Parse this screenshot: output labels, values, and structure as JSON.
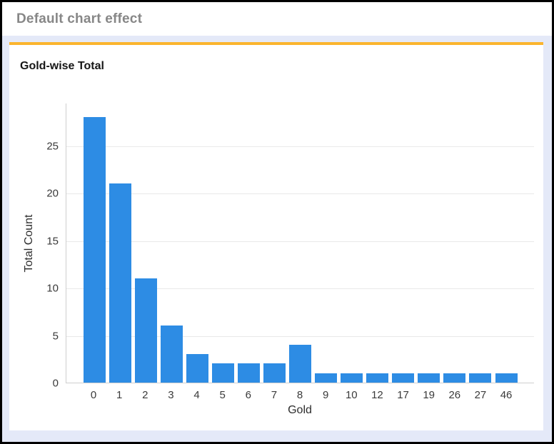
{
  "window": {
    "title": "Default chart effect"
  },
  "colors": {
    "bar": "#2d8ce4",
    "accent_line": "#fbb52e",
    "page_background": "#e4e9f8",
    "card_background": "#ffffff",
    "header_text": "#878787",
    "grid_line": "#e9e9e9",
    "axis_line": "#cfcfcf",
    "frame_border": "#000000"
  },
  "chart_data": {
    "type": "bar",
    "title": "Gold-wise Total",
    "xlabel": "Gold",
    "ylabel": "Total Count",
    "categories": [
      "0",
      "1",
      "2",
      "3",
      "4",
      "5",
      "6",
      "7",
      "8",
      "9",
      "10",
      "12",
      "17",
      "19",
      "26",
      "27",
      "46"
    ],
    "values": [
      28,
      21,
      11,
      6,
      3,
      2,
      2,
      2,
      4,
      1,
      1,
      1,
      1,
      1,
      1,
      1,
      1
    ],
    "yticks": [
      0,
      5,
      10,
      15,
      20,
      25
    ],
    "ylim": [
      0,
      29.5
    ],
    "grid": true,
    "legend": false
  }
}
